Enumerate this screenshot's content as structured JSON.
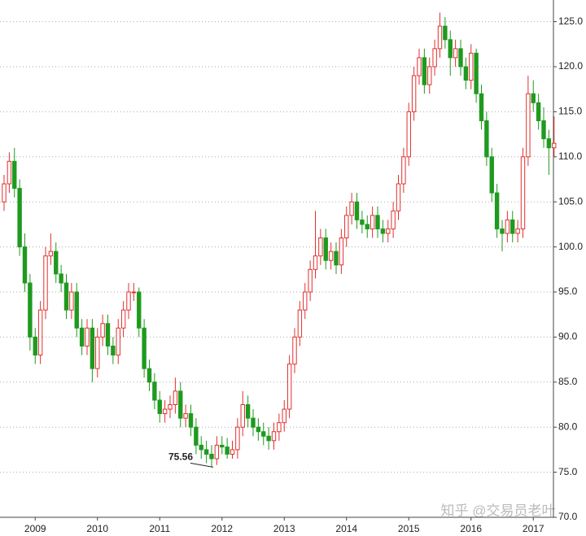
{
  "chart_data": {
    "type": "candlestick",
    "categories": [
      null,
      null,
      null,
      null,
      null,
      null,
      "2009",
      null,
      null,
      null,
      null,
      null,
      null,
      null,
      null,
      null,
      null,
      null,
      "2010",
      null,
      null,
      null,
      null,
      null,
      null,
      null,
      null,
      null,
      null,
      null,
      "2011",
      null,
      null,
      null,
      null,
      null,
      null,
      null,
      null,
      null,
      null,
      null,
      "2012",
      null,
      null,
      null,
      null,
      null,
      null,
      null,
      null,
      null,
      null,
      null,
      "2013",
      null,
      null,
      null,
      null,
      null,
      null,
      null,
      null,
      null,
      null,
      null,
      "2014",
      null,
      null,
      null,
      null,
      null,
      null,
      null,
      null,
      null,
      null,
      null,
      "2015",
      null,
      null,
      null,
      null,
      null,
      null,
      null,
      null,
      null,
      null,
      null,
      "2016",
      null,
      null,
      null,
      null,
      null,
      null,
      null,
      null,
      null,
      null,
      null,
      "2017",
      null,
      null,
      null,
      null
    ],
    "open": [
      105,
      107,
      109.5,
      106.5,
      100,
      96,
      90,
      88,
      93,
      99,
      99.5,
      97,
      96,
      93,
      95,
      91,
      89,
      91,
      86.5,
      90,
      91.5,
      89,
      88,
      91,
      93,
      95,
      95,
      91,
      86.5,
      85,
      83,
      81.5,
      82,
      82.5,
      84,
      81,
      81.5,
      80,
      78,
      77.5,
      77,
      76.5,
      78,
      77.8,
      77,
      77.5,
      80,
      82.5,
      81,
      80,
      79.5,
      79,
      78.5,
      79.5,
      80.5,
      82,
      87,
      90,
      93,
      95,
      97.5,
      99,
      101,
      98.5,
      99.5,
      98,
      101,
      103.5,
      105,
      103,
      102.5,
      102,
      103.5,
      102,
      101.5,
      102,
      104,
      107,
      110,
      115,
      119,
      121,
      118,
      120,
      122,
      124.5,
      123,
      121,
      122,
      120,
      118.5,
      121.5,
      117,
      114,
      110,
      106,
      102,
      101.5,
      103,
      101.5,
      102,
      110,
      117,
      116,
      114,
      112,
      111
    ],
    "high": [
      108,
      110.5,
      111,
      107.5,
      101.5,
      97,
      91,
      94,
      100,
      101.5,
      100.5,
      98,
      97,
      96,
      96,
      92,
      92,
      92,
      91,
      92.5,
      92.5,
      90,
      92,
      94,
      96,
      96,
      95.5,
      92,
      87.5,
      86,
      84,
      83,
      83.5,
      85.5,
      85,
      82.5,
      82.5,
      81,
      79,
      78.5,
      78,
      79,
      79,
      78.8,
      78.5,
      81,
      84,
      83.5,
      82,
      81,
      80.5,
      80,
      80.5,
      81.5,
      83,
      88,
      91,
      94,
      96,
      98.5,
      104,
      102,
      102,
      100.5,
      100.5,
      102,
      104.5,
      106,
      106,
      104,
      103.5,
      104.5,
      104.5,
      103,
      103,
      105,
      108,
      111,
      116,
      120,
      122,
      122,
      121,
      123,
      126,
      125.5,
      124,
      123,
      123,
      121,
      122.5,
      122,
      118,
      115,
      111,
      107,
      103,
      104,
      104,
      103,
      111,
      119,
      118.5,
      117,
      115.5,
      113,
      114.5
    ],
    "low": [
      104,
      106,
      105.5,
      99,
      95,
      88.5,
      87,
      87,
      92,
      98,
      96,
      95,
      92,
      92,
      90,
      88,
      88,
      85,
      85.5,
      89,
      88,
      87,
      87,
      90,
      92,
      94,
      90,
      85.5,
      84,
      82,
      80.5,
      80.5,
      81,
      81.5,
      80,
      80,
      79,
      77,
      76.5,
      76,
      75.56,
      75.8,
      77,
      76.5,
      76.5,
      76.5,
      79,
      80,
      79,
      78.5,
      78,
      77.5,
      77.5,
      78.5,
      79.5,
      81,
      86,
      89,
      92,
      94,
      96.5,
      98,
      97.5,
      97.5,
      97,
      97,
      100,
      102.5,
      102,
      101.5,
      101,
      101,
      101,
      100.5,
      100.5,
      101,
      103,
      106,
      109,
      114,
      118,
      117,
      117,
      119,
      121,
      122,
      119,
      120,
      119,
      117.5,
      117.5,
      116,
      113,
      109,
      105,
      101,
      99.5,
      100.5,
      100.5,
      100.5,
      101,
      109,
      115,
      113,
      111,
      108,
      110
    ],
    "close": [
      107,
      109.5,
      106.5,
      100,
      96,
      90,
      88,
      93,
      99,
      99.5,
      97,
      96,
      93,
      95,
      91,
      89,
      91,
      86.5,
      90,
      91.5,
      89,
      88,
      91,
      93,
      95,
      95,
      91,
      86.5,
      85,
      83,
      81.5,
      82,
      82.5,
      84,
      81,
      81.5,
      80,
      78,
      77.5,
      77,
      76.5,
      78,
      77.8,
      77,
      77.5,
      80,
      82.5,
      81,
      80,
      79.5,
      79,
      78.5,
      79.5,
      80.5,
      82,
      87,
      90,
      93,
      95,
      97.5,
      99,
      101,
      98.5,
      99.5,
      98,
      101,
      103.5,
      105,
      103,
      102.5,
      102,
      103.5,
      102,
      101.5,
      102,
      104,
      107,
      110,
      115,
      119,
      121,
      118,
      120,
      122,
      124.5,
      123,
      121,
      122,
      120,
      118.5,
      121.5,
      117,
      114,
      110,
      106,
      102,
      101.5,
      103,
      101.5,
      102,
      110,
      117,
      116,
      114,
      112,
      111,
      111.5
    ],
    "up_color": "#e0302f",
    "down_color": "#1f9a1f",
    "ylim": [
      70,
      127.4
    ],
    "yticks": [
      {
        "value": 70,
        "label": "70.0"
      },
      {
        "value": 75,
        "label": "75.0"
      },
      {
        "value": 80,
        "label": "80.0"
      },
      {
        "value": 85,
        "label": "85.0"
      },
      {
        "value": 90,
        "label": "90.0"
      },
      {
        "value": 95,
        "label": "95.0"
      },
      {
        "value": 100,
        "label": "100.0"
      },
      {
        "value": 105,
        "label": "105.0"
      },
      {
        "value": 110,
        "label": "110.0"
      },
      {
        "value": 115,
        "label": "115.0"
      },
      {
        "value": 120,
        "label": "120.0"
      },
      {
        "value": 125,
        "label": "125.0"
      }
    ],
    "grid": true,
    "watermark": "知乎 @交易员老叶"
  }
}
